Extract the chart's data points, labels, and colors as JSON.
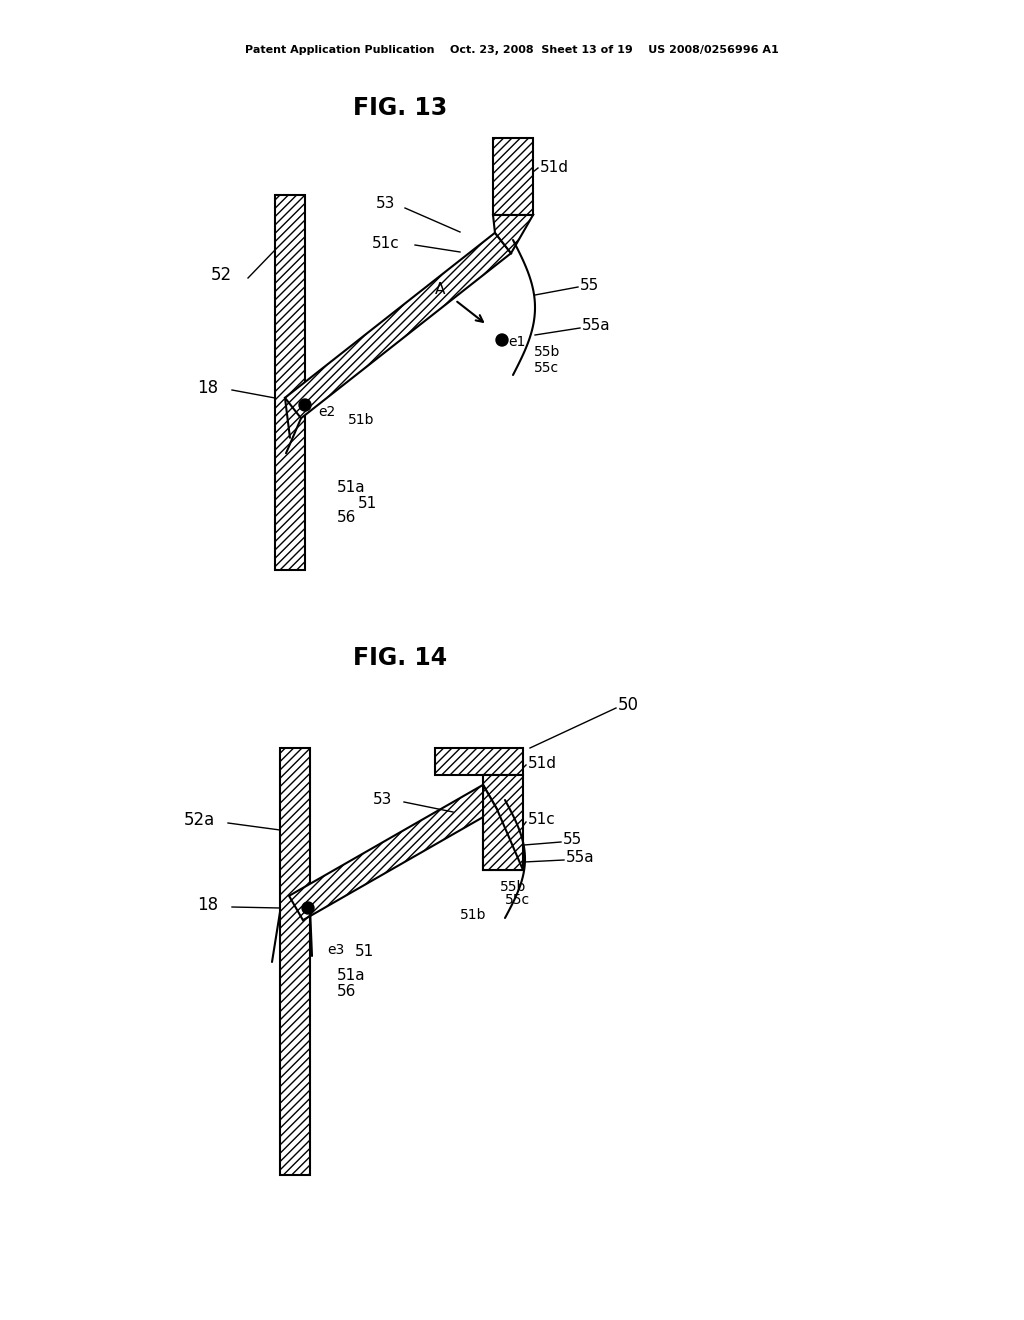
{
  "fig_width": 10.24,
  "fig_height": 13.2,
  "dpi": 100,
  "bg_color": "#ffffff",
  "header": "Patent Application Publication    Oct. 23, 2008  Sheet 13 of 19    US 2008/0256996 A1",
  "fig13_title": "FIG. 13",
  "fig14_title": "FIG. 14",
  "hatch": "////"
}
